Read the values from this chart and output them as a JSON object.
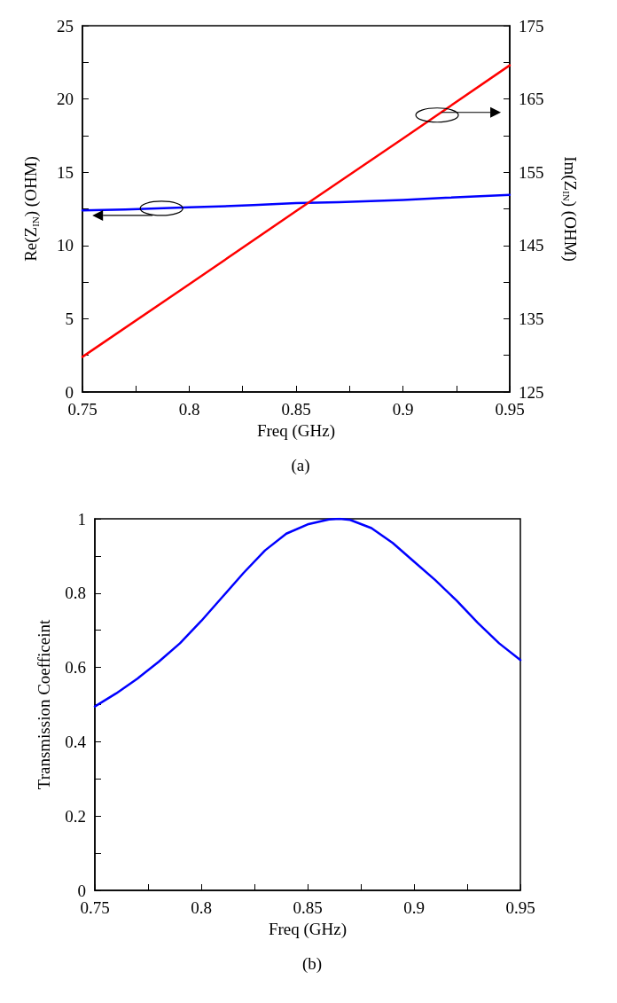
{
  "chart_data": [
    {
      "type": "line",
      "xlabel": "Freq (GHz)",
      "ylabel": "Re(Z$_{IN}$) (OHM)",
      "y2label": "Im(Z$_{IN}$) (OHM)",
      "annotations": [
        "(a)"
      ],
      "xlim": [
        0.75,
        0.95
      ],
      "xticks": [
        0.75,
        {
          "value": 0.775,
          "label": null
        },
        0.8,
        {
          "value": 0.825,
          "label": null
        },
        0.85,
        {
          "value": 0.875,
          "label": null
        },
        0.9,
        {
          "value": 0.925,
          "label": null
        },
        0.95
      ],
      "ylim": [
        0,
        25
      ],
      "yticks": [
        0,
        {
          "value": 2.5,
          "label": null
        },
        5,
        {
          "value": 7.5,
          "label": null
        },
        10,
        {
          "value": 12.5,
          "label": null
        },
        15,
        {
          "value": 17.5,
          "label": null
        },
        20,
        {
          "value": 22.5,
          "label": null
        },
        25
      ],
      "y2lim": [
        125,
        175
      ],
      "y2ticks": [
        125,
        {
          "value": 130,
          "label": null
        },
        135,
        {
          "value": 140,
          "label": null
        },
        145,
        {
          "value": 150,
          "label": null
        },
        155,
        {
          "value": 160,
          "label": null
        },
        165,
        {
          "value": 170,
          "label": null
        },
        175
      ],
      "marker": "none",
      "line_style": "solid",
      "series": [
        {
          "color": "#0000ff",
          "x": [
            0.75,
            0.77,
            0.8,
            0.83,
            0.85,
            0.87,
            0.9,
            0.92,
            0.95
          ],
          "values": [
            12.4,
            12.45,
            12.6,
            12.75,
            12.9,
            12.95,
            13.1,
            13.25,
            13.45
          ]
        },
        {
          "color": "#ff0000",
          "axis": "y2",
          "x": [
            0.75,
            0.8,
            0.85,
            0.9,
            0.95
          ],
          "values": [
            129.8,
            139.7,
            149.7,
            159.6,
            169.6
          ]
        }
      ]
    },
    {
      "type": "line",
      "xlabel": "Freq (GHz)",
      "ylabel": "Transmission Coefficeint",
      "annotations": [
        "(b)"
      ],
      "xlim": [
        0.75,
        0.95
      ],
      "xticks": [
        0.75,
        {
          "value": 0.775,
          "label": null
        },
        0.8,
        {
          "value": 0.825,
          "label": null
        },
        0.85,
        {
          "value": 0.875,
          "label": null
        },
        0.9,
        {
          "value": 0.925,
          "label": null
        },
        0.95
      ],
      "ylim": [
        0,
        1
      ],
      "yticks": [
        0,
        {
          "value": 0.1,
          "label": null
        },
        0.2,
        {
          "value": 0.3,
          "label": null
        },
        0.4,
        {
          "value": 0.5,
          "label": null
        },
        0.6,
        {
          "value": 0.7,
          "label": null
        },
        0.8,
        {
          "value": 0.9,
          "label": null
        },
        1
      ],
      "marker": "none",
      "line_style": "solid",
      "series": [
        {
          "color": "#0000ff",
          "x": [
            0.75,
            0.76,
            0.77,
            0.78,
            0.79,
            0.8,
            0.81,
            0.82,
            0.83,
            0.84,
            0.85,
            0.86,
            0.865,
            0.87,
            0.88,
            0.89,
            0.9,
            0.91,
            0.92,
            0.93,
            0.94,
            0.95
          ],
          "values": [
            0.495,
            0.53,
            0.57,
            0.615,
            0.665,
            0.725,
            0.79,
            0.855,
            0.915,
            0.96,
            0.985,
            0.998,
            1.0,
            0.997,
            0.975,
            0.935,
            0.885,
            0.835,
            0.78,
            0.72,
            0.665,
            0.62
          ]
        }
      ]
    }
  ]
}
